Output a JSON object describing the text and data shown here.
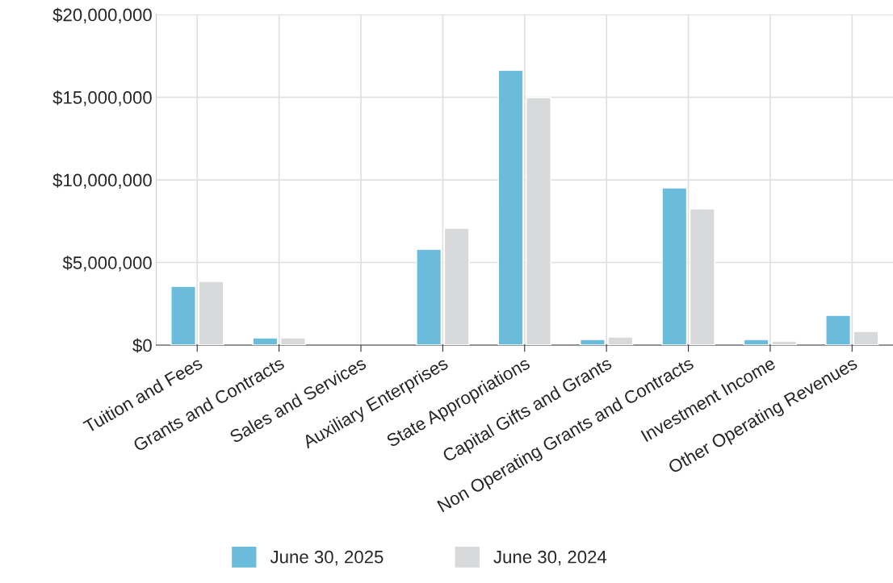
{
  "chart_data": {
    "type": "bar",
    "categories": [
      "Tuition and Fees",
      "Grants and Contracts",
      "Sales and Services",
      "Auxiliary Enterprises",
      "State Appropriations",
      "Capital Gifts and Grants",
      "Non Operating Grants and Contracts",
      "Investment Income",
      "Other Operating Revenues"
    ],
    "series": [
      {
        "name": "June 30, 2025",
        "color": "#6bbcdb",
        "values": [
          3560000,
          440000,
          null,
          5800000,
          16630000,
          340000,
          9510000,
          340000,
          1800000
        ]
      },
      {
        "name": "June 30, 2024",
        "color": "#d7d9da",
        "values": [
          3850000,
          440000,
          null,
          7070000,
          14980000,
          490000,
          8240000,
          240000,
          830000
        ]
      }
    ],
    "ylim": [
      0,
      20000000
    ],
    "yticks": [
      {
        "value": 0,
        "label": "$0"
      },
      {
        "value": 5000000,
        "label": "$5,000,000"
      },
      {
        "value": 10000000,
        "label": "$10,000,000"
      },
      {
        "value": 15000000,
        "label": "$15,000,000"
      },
      {
        "value": 20000000,
        "label": "$20,000,000"
      }
    ],
    "grid": true,
    "legend": "bottom"
  }
}
